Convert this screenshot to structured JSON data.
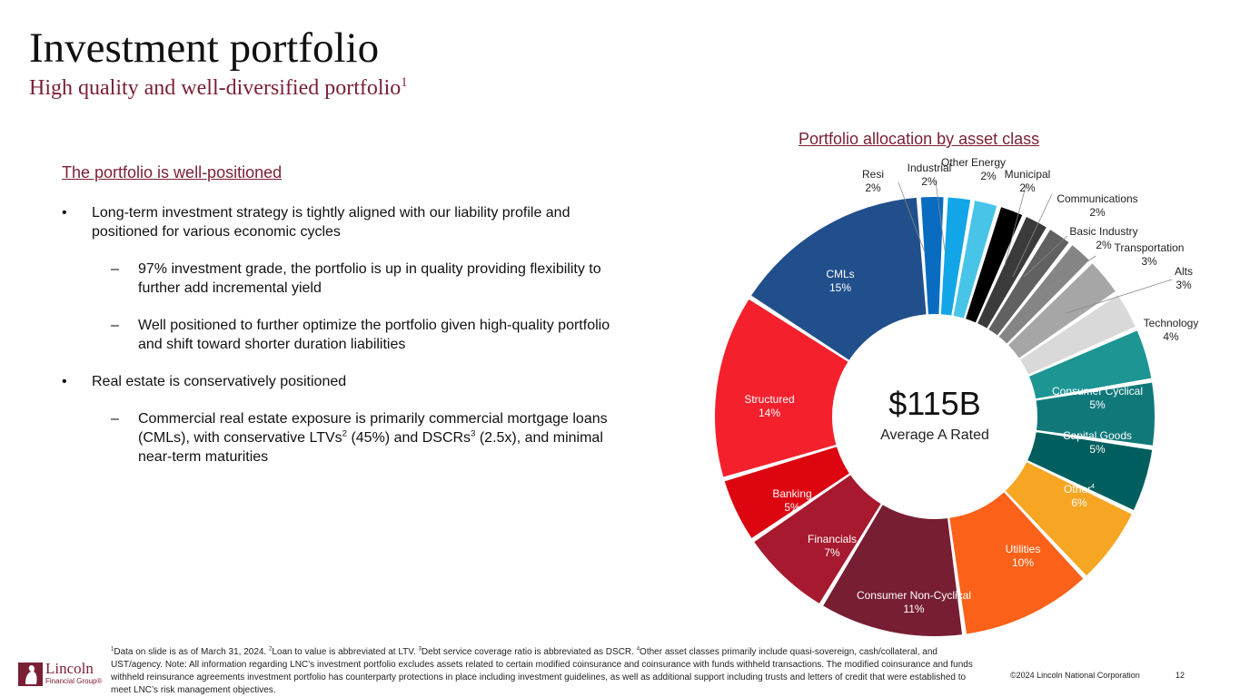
{
  "header": {
    "title": "Investment portfolio",
    "subtitle": "High quality and well-diversified portfolio",
    "subtitle_sup": "1"
  },
  "left": {
    "section_title": "The portfolio is well-positioned",
    "bullets": [
      {
        "level": 1,
        "text": "Long-term investment strategy is tightly aligned with our liability profile and positioned for various economic cycles"
      },
      {
        "level": 2,
        "text": "97% investment grade, the portfolio is up in quality providing flexibility to further add incremental yield"
      },
      {
        "level": 2,
        "text": "Well positioned to further optimize the portfolio given high-quality portfolio and shift toward shorter duration liabilities"
      },
      {
        "level": 1,
        "text": "Real estate is conservatively positioned"
      },
      {
        "level": 2,
        "text_parts": [
          "Commercial real estate exposure is primarily commercial mortgage loans (CMLs), with conservative LTVs",
          "2",
          " (45%) and DSCRs",
          "3",
          " (2.5x), and minimal near-term maturities"
        ]
      }
    ],
    "bullet_marker": "•",
    "dash_marker": "–"
  },
  "chart_data": {
    "type": "pie",
    "donut": true,
    "title": "Portfolio allocation by asset class",
    "center_value": "$115B",
    "center_label": "Average A Rated",
    "slices": [
      {
        "label": "Resi",
        "pct_label": "2%",
        "value": 2,
        "color": "#0a6cc1"
      },
      {
        "label": "Industrial",
        "pct_label": "2%",
        "value": 2,
        "color": "#12a6e8"
      },
      {
        "label": "Other",
        "pct_label": "",
        "value": 2,
        "color": "#48c4e9"
      },
      {
        "label": "Energy",
        "pct_label": "2%",
        "value": 2,
        "color": "#000000"
      },
      {
        "label": "Municipal",
        "pct_label": "2%",
        "value": 2,
        "color": "#3b3b3b"
      },
      {
        "label": "Communications",
        "pct_label": "2%",
        "value": 2,
        "color": "#616161"
      },
      {
        "label": "Basic Industry",
        "pct_label": "2%",
        "value": 2,
        "color": "#858585"
      },
      {
        "label": "Transportation",
        "pct_label": "3%",
        "value": 3,
        "color": "#a6a6a6"
      },
      {
        "label": "Alts",
        "pct_label": "3%",
        "value": 3,
        "color": "#d9d9d9"
      },
      {
        "label": "Technology",
        "pct_label": "4%",
        "value": 4,
        "color": "#1c9593"
      },
      {
        "label": "Consumer Cyclical",
        "pct_label": "5%",
        "value": 5,
        "color": "#11787a"
      },
      {
        "label": "Capital Goods",
        "pct_label": "5%",
        "value": 5,
        "color": "#005e5e"
      },
      {
        "label": "Other",
        "sup": "4",
        "pct_label": "6%",
        "value": 6,
        "color": "#f6a623"
      },
      {
        "label": "Utilities",
        "pct_label": "10%",
        "value": 10,
        "color": "#fc6119"
      },
      {
        "label": "Consumer Non-Cyclical",
        "pct_label": "11%",
        "value": 11,
        "color": "#771e32"
      },
      {
        "label": "Financials",
        "pct_label": "7%",
        "value": 7,
        "color": "#a6192e"
      },
      {
        "label": "Banking",
        "pct_label": "5%",
        "value": 5,
        "color": "#dc0510"
      },
      {
        "label": "Structured",
        "pct_label": "14%",
        "value": 14,
        "color": "#f4212d"
      },
      {
        "label": "CMLs",
        "pct_label": "15%",
        "value": 15,
        "color": "#214f8c"
      }
    ]
  },
  "footer": {
    "footnote_parts": [
      "1",
      "Data on slide is as of March 31, 2024.  ",
      "2",
      "Loan to value is abbreviated at LTV.  ",
      "3",
      "Debt service coverage ratio is abbreviated as DSCR.  ",
      "4",
      "Other asset classes primarily include quasi-sovereign, cash/collateral, and UST/agency. Note: All information regarding LNC’s investment portfolio excludes assets related to certain modified coinsurance and coinsurance with funds withheld transactions. The modified coinsurance and funds withheld reinsurance agreements investment portfolio has counterparty protections in place including investment guidelines, as well as additional support including trusts and letters of credit that were established to meet LNC’s risk management objectives."
    ],
    "copyright": "©2024 Lincoln National Corporation",
    "page_number": "12",
    "logo_name": "Lincoln",
    "logo_sub": "Financial Group",
    "logo_reg": "®"
  }
}
